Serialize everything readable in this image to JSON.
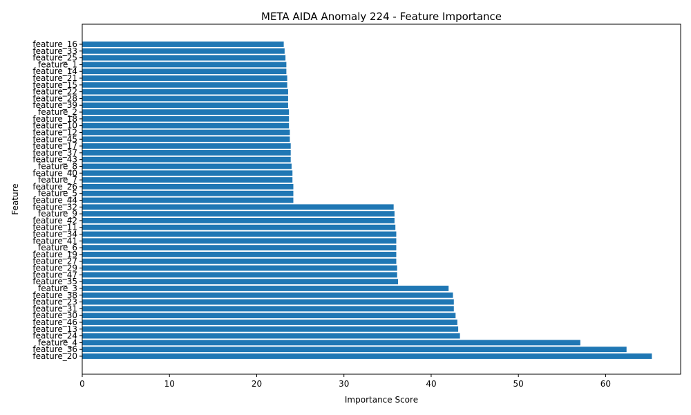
{
  "chart_data": {
    "type": "bar",
    "orientation": "horizontal",
    "title": "META AIDA Anomaly 224 - Feature Importance",
    "xlabel": "Importance Score",
    "ylabel": "Feature",
    "xlim": [
      0,
      68.6
    ],
    "xticks": [
      0,
      10,
      20,
      30,
      40,
      50,
      60
    ],
    "grid": false,
    "bar_color": "#1f77b4",
    "categories": [
      "feature_20",
      "feature_36",
      "feature_4",
      "feature_24",
      "feature_13",
      "feature_46",
      "feature_30",
      "feature_31",
      "feature_23",
      "feature_38",
      "feature_3",
      "feature_35",
      "feature_47",
      "feature_29",
      "feature_27",
      "feature_19",
      "feature_6",
      "feature_41",
      "feature_34",
      "feature_11",
      "feature_42",
      "feature_9",
      "feature_32",
      "feature_44",
      "feature_5",
      "feature_26",
      "feature_7",
      "feature_40",
      "feature_8",
      "feature_43",
      "feature_37",
      "feature_17",
      "feature_45",
      "feature_12",
      "feature_10",
      "feature_18",
      "feature_2",
      "feature_39",
      "feature_28",
      "feature_22",
      "feature_15",
      "feature_21",
      "feature_14",
      "feature_1",
      "feature_25",
      "feature_33",
      "feature_16"
    ],
    "values": [
      65.3,
      62.4,
      57.1,
      43.3,
      43.1,
      43.0,
      42.8,
      42.6,
      42.6,
      42.5,
      42.0,
      36.2,
      36.1,
      36.1,
      36.0,
      36.0,
      36.0,
      36.0,
      36.0,
      35.9,
      35.8,
      35.8,
      35.7,
      24.2,
      24.2,
      24.2,
      24.1,
      24.1,
      24.0,
      23.9,
      23.9,
      23.9,
      23.8,
      23.8,
      23.7,
      23.7,
      23.7,
      23.6,
      23.6,
      23.6,
      23.5,
      23.5,
      23.4,
      23.4,
      23.3,
      23.2,
      23.1
    ]
  }
}
